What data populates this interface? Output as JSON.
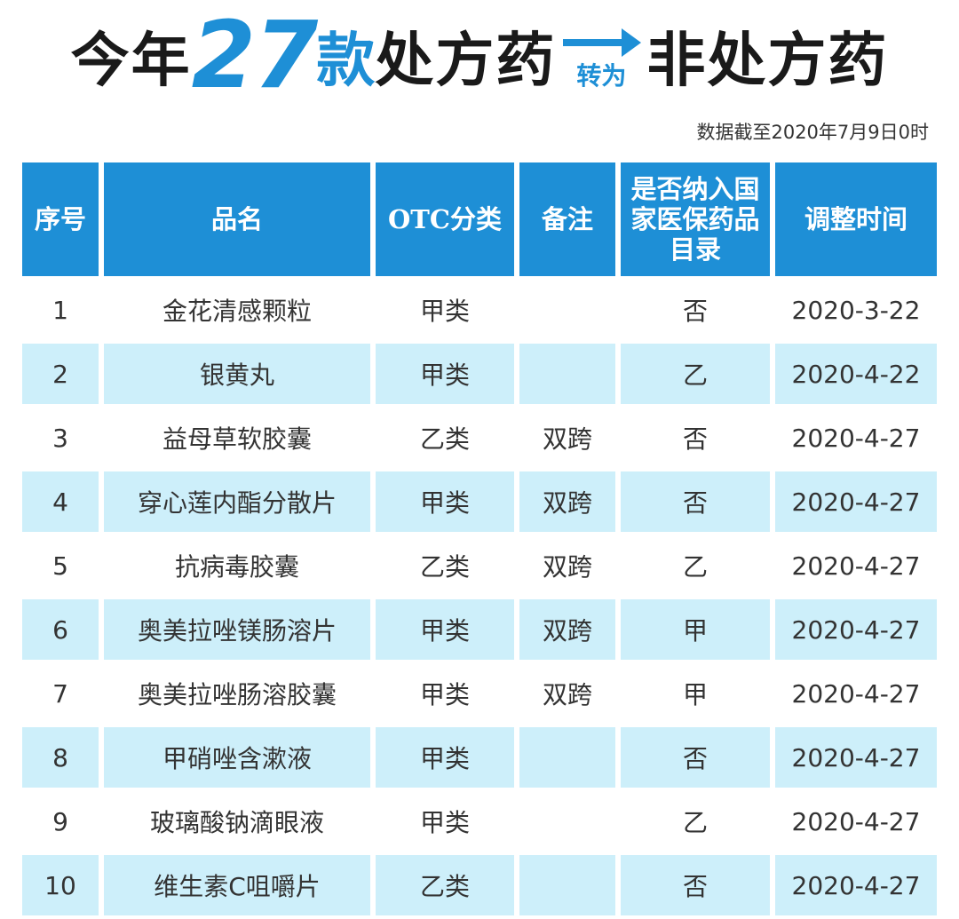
{
  "title": {
    "part1": "今年",
    "number": "27",
    "unit": "款",
    "part2": "处方药",
    "arrow_label": "转为",
    "part3": "非处方药"
  },
  "note": "数据截至2020年7月9日0时",
  "colors": {
    "accent": "#1e8fd6",
    "row_alt": "#cdeffa",
    "text": "#333333"
  },
  "table": {
    "headers": [
      "序号",
      "品名",
      "OTC分类",
      "备注",
      "是否纳入国家医保药品目录",
      "调整时间"
    ],
    "rows": [
      [
        "1",
        "金花清感颗粒",
        "甲类",
        "",
        "否",
        "2020-3-22"
      ],
      [
        "2",
        "银黄丸",
        "甲类",
        "",
        "乙",
        "2020-4-22"
      ],
      [
        "3",
        "益母草软胶囊",
        "乙类",
        "双跨",
        "否",
        "2020-4-27"
      ],
      [
        "4",
        "穿心莲内酯分散片",
        "甲类",
        "双跨",
        "否",
        "2020-4-27"
      ],
      [
        "5",
        "抗病毒胶囊",
        "乙类",
        "双跨",
        "乙",
        "2020-4-27"
      ],
      [
        "6",
        "奥美拉唑镁肠溶片",
        "甲类",
        "双跨",
        "甲",
        "2020-4-27"
      ],
      [
        "7",
        "奥美拉唑肠溶胶囊",
        "甲类",
        "双跨",
        "甲",
        "2020-4-27"
      ],
      [
        "8",
        "甲硝唑含漱液",
        "甲类",
        "",
        "否",
        "2020-4-27"
      ],
      [
        "9",
        "玻璃酸钠滴眼液",
        "甲类",
        "",
        "乙",
        "2020-4-27"
      ],
      [
        "10",
        "维生素C咀嚼片",
        "乙类",
        "",
        "否",
        "2020-4-27"
      ]
    ]
  }
}
